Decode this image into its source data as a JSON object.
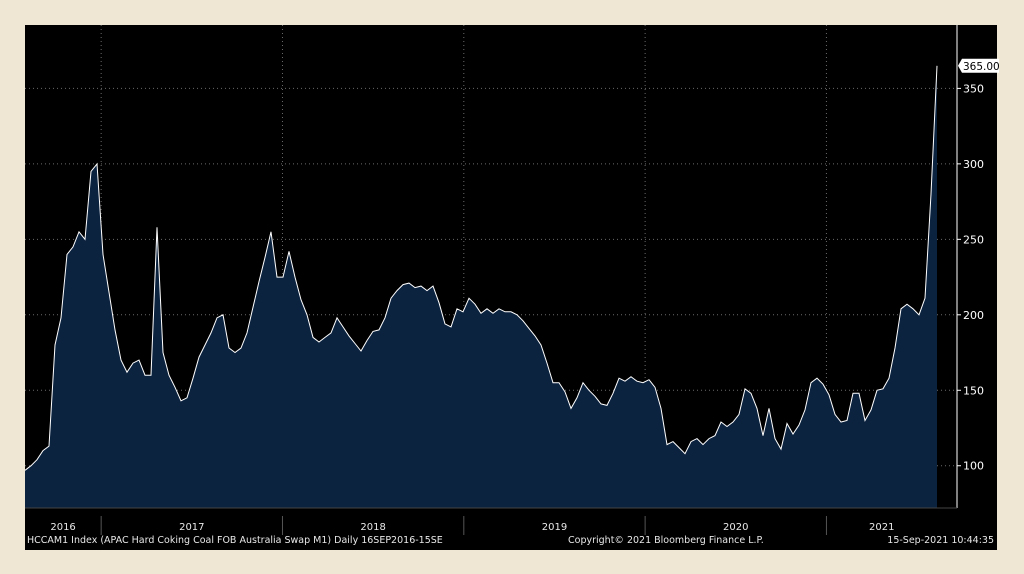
{
  "chart_data": {
    "type": "area",
    "title": "HCCAM1 Index (APAC Hard Coking Coal FOB Australia Swap M1)",
    "frequency": "Daily",
    "range_label": "16SEP2016-15SE",
    "x_start": "2016-09-16",
    "x_end": "2021-09-15",
    "x_domain": [
      2016.58,
      2021.72
    ],
    "x_tick_labels": [
      "2016",
      "2017",
      "2018",
      "2019",
      "2020",
      "2021"
    ],
    "y_ticks": [
      100,
      150,
      200,
      250,
      300,
      350
    ],
    "ylim": [
      72,
      392
    ],
    "last_value_label": "365.00",
    "grid": true,
    "colors": {
      "fill": "#0c2340",
      "line": "#ffffff",
      "grid": "#6a6a6a"
    },
    "values": [
      97,
      100,
      104,
      110,
      113,
      180,
      198,
      240,
      245,
      255,
      250,
      295,
      300,
      240,
      215,
      190,
      170,
      162,
      168,
      170,
      160,
      160,
      258,
      175,
      160,
      152,
      143,
      145,
      158,
      172,
      180,
      188,
      198,
      200,
      178,
      175,
      178,
      188,
      205,
      222,
      238,
      255,
      225,
      225,
      242,
      225,
      210,
      200,
      185,
      182,
      185,
      188,
      198,
      192,
      186,
      181,
      176,
      183,
      189,
      190,
      198,
      211,
      216,
      220,
      221,
      218,
      219,
      216,
      219,
      208,
      194,
      192,
      204,
      202,
      211,
      207,
      201,
      204,
      201,
      204,
      202,
      202,
      200,
      196,
      191,
      186,
      180,
      168,
      155,
      155,
      149,
      138,
      145,
      155,
      150,
      146,
      141,
      140,
      148,
      158,
      156,
      159,
      156,
      155,
      157,
      152,
      138,
      114,
      116,
      112,
      108,
      116,
      118,
      114,
      118,
      120,
      129,
      126,
      129,
      134,
      151,
      148,
      138,
      120,
      138,
      118,
      111,
      128,
      121,
      127,
      137,
      155,
      158,
      154,
      147,
      134,
      129,
      130,
      148,
      148,
      130,
      137,
      150,
      151,
      158,
      178,
      204,
      207,
      204,
      200,
      211,
      280,
      365
    ]
  },
  "footer": {
    "title": "HCCAM1 Index (APAC Hard Coking Coal FOB Australia Swap M1)  Daily 16SEP2016-15SE",
    "copyright": "Copyright© 2021 Bloomberg Finance L.P.",
    "timestamp": "15-Sep-2021 10:44:35"
  }
}
